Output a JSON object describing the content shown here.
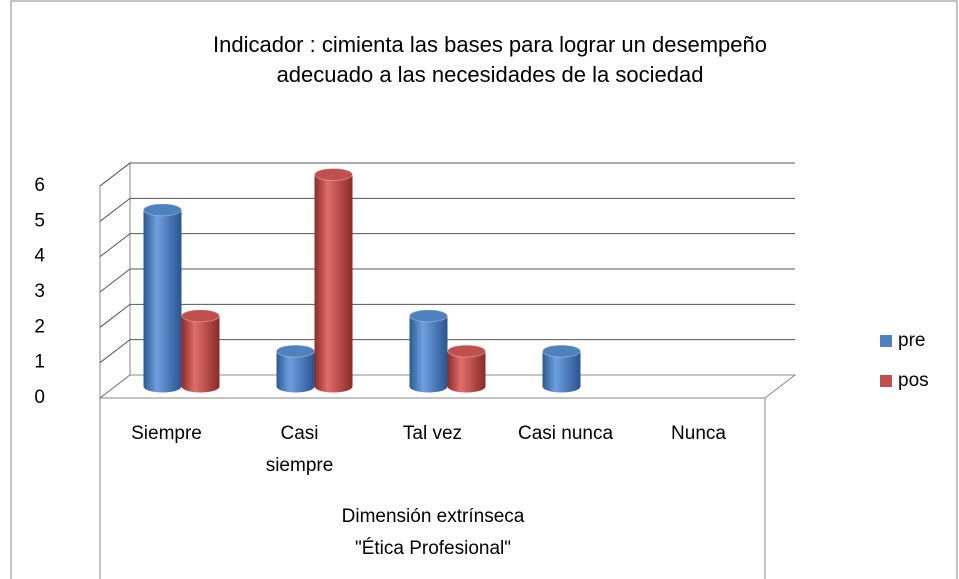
{
  "chart_data": {
    "type": "bar3d",
    "title": [
      "Indicador : cimienta las bases para lograr un desempeño",
      "adecuado a las necesidades de la sociedad"
    ],
    "xlabel": [
      "Dimensión extrínseca",
      "\"Ética Profesional\""
    ],
    "categories": [
      "Siempre",
      "Casi siempre",
      "Tal vez",
      "Casi nunca",
      "Nunca"
    ],
    "series": [
      {
        "name": "pre",
        "color": "#4f81bd",
        "values": [
          5,
          1,
          2,
          1,
          0
        ]
      },
      {
        "name": "pos",
        "color": "#c0504d",
        "values": [
          2,
          6,
          1,
          0,
          0
        ]
      }
    ],
    "ylim": [
      0,
      6
    ],
    "yticks": [
      0,
      1,
      2,
      3,
      4,
      5,
      6
    ],
    "grid": true,
    "legend": "right"
  }
}
